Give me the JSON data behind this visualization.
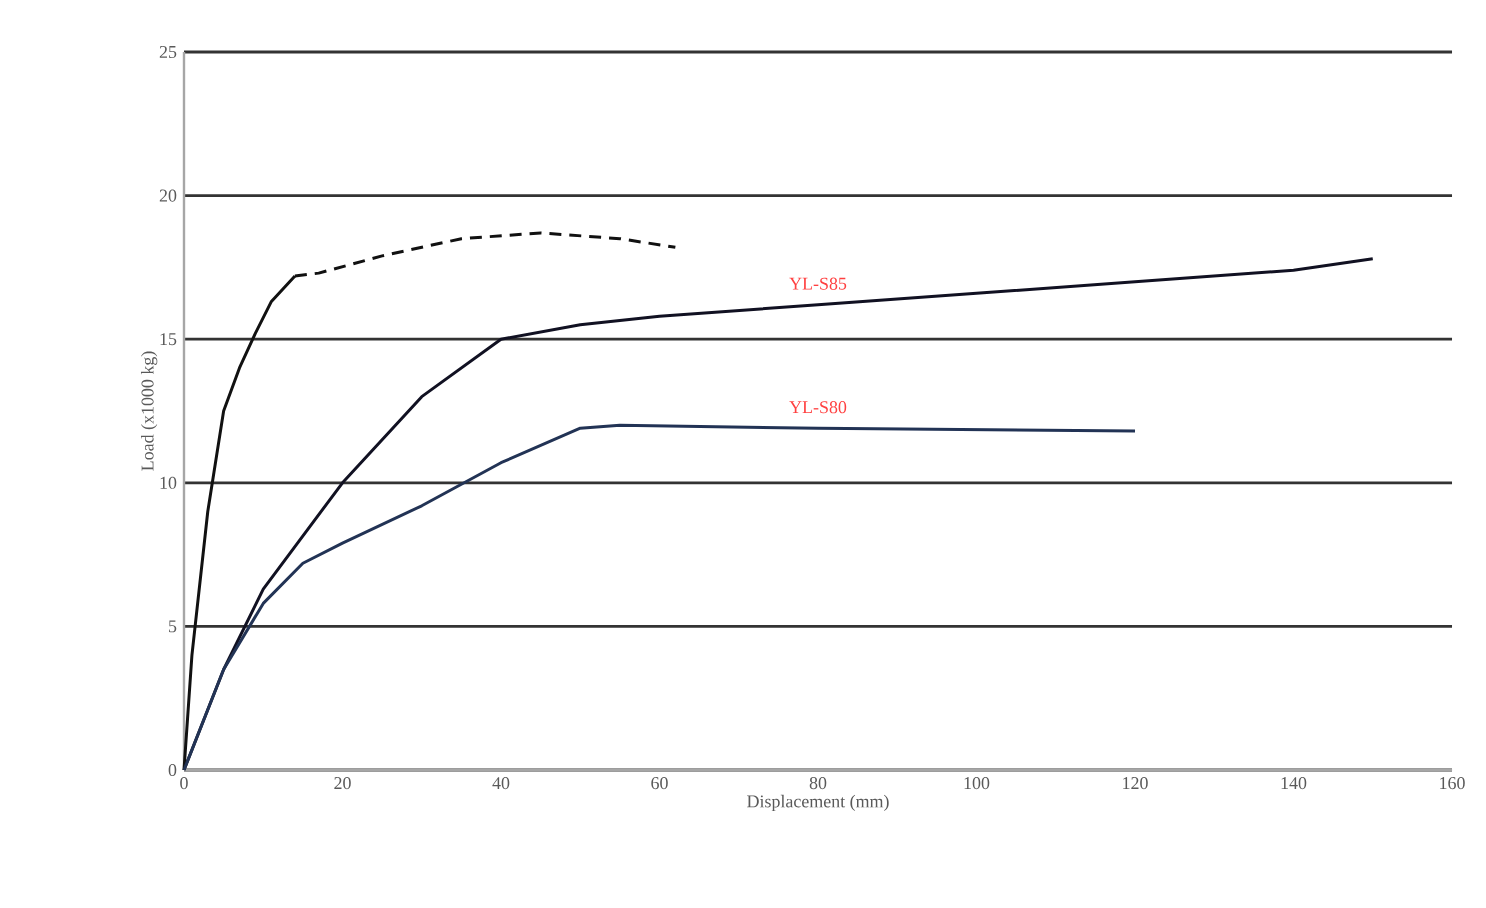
{
  "chart_data": {
    "type": "line",
    "xlabel": "Displacement (mm)",
    "ylabel": "Load (x1000 kg)",
    "xlim": [
      0,
      160
    ],
    "ylim": [
      0,
      25
    ],
    "xticks": [
      0,
      20,
      40,
      60,
      80,
      100,
      120,
      140,
      160
    ],
    "yticks": [
      0,
      5,
      10,
      15,
      20,
      25
    ],
    "grid": "y",
    "series": [
      {
        "color": "#111111",
        "line_style": "solid",
        "x": [
          0,
          1,
          3,
          5,
          7,
          9,
          11,
          14
        ],
        "values": [
          0,
          4,
          9,
          12.5,
          14,
          15.2,
          16.3,
          17.2
        ]
      },
      {
        "color": "#111111",
        "line_style": "dashed",
        "x": [
          14,
          17,
          25,
          35,
          45,
          55,
          62
        ],
        "values": [
          17.2,
          17.3,
          17.9,
          18.5,
          18.7,
          18.5,
          18.2
        ]
      },
      {
        "name": "YL-S85",
        "color": "#111122",
        "line_style": "solid",
        "x": [
          0,
          5,
          10,
          20,
          30,
          40,
          50,
          60,
          80,
          100,
          120,
          140,
          150
        ],
        "values": [
          0,
          3.5,
          6.3,
          10,
          13,
          15,
          15.5,
          15.8,
          16.2,
          16.6,
          17,
          17.4,
          17.8
        ]
      },
      {
        "name": "YL-S80",
        "color": "#223355",
        "line_style": "solid",
        "x": [
          0,
          5,
          10,
          15,
          20,
          30,
          40,
          50,
          55,
          80,
          120
        ],
        "values": [
          0,
          3.5,
          5.8,
          7.2,
          7.9,
          9.2,
          10.7,
          11.9,
          12,
          11.9,
          11.8
        ]
      }
    ]
  }
}
